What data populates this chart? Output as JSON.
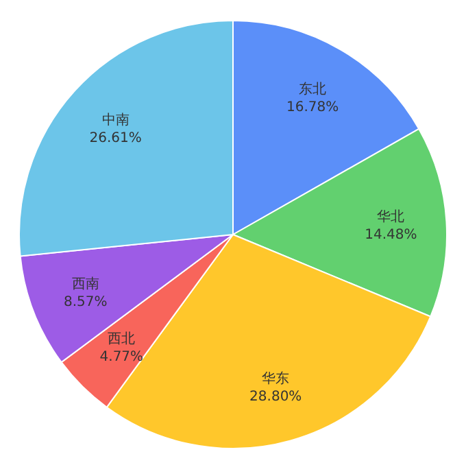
{
  "chart_data": {
    "type": "pie",
    "categories": [
      "东北",
      "华北",
      "华东",
      "西北",
      "西南",
      "中南"
    ],
    "values": [
      16.78,
      14.48,
      28.8,
      4.77,
      8.57,
      26.61
    ],
    "value_labels": [
      "16.78%",
      "14.48%",
      "28.80%",
      "4.77%",
      "8.57%",
      "26.61%"
    ],
    "colors": [
      "#5b8ff9",
      "#62d06f",
      "#ffc72b",
      "#f8655b",
      "#9d5ce6",
      "#6cc5e9"
    ]
  }
}
